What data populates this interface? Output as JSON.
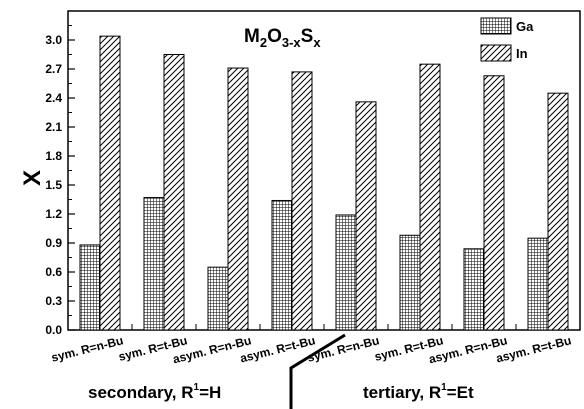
{
  "chart_data": {
    "type": "bar",
    "title": {
      "base": "M",
      "s1": "2",
      "mid": "O",
      "s2": "3-x",
      "mid2": "S",
      "s3": "x"
    },
    "ylabel": "X",
    "xlabel": "",
    "ylim": [
      0,
      3.3
    ],
    "yticks": [
      "0.0",
      "0.3",
      "0.6",
      "0.9",
      "1.2",
      "1.5",
      "1.8",
      "2.1",
      "2.4",
      "2.7",
      "3.0"
    ],
    "categories": [
      "sym. R=n-Bu",
      "sym. R=t-Bu",
      "asym. R=n-Bu",
      "asym. R=t-Bu",
      "sym. R=n-Bu",
      "sym. R=t-Bu",
      "asym. R=n-Bu",
      "asym. R=t-Bu"
    ],
    "series": [
      {
        "name": "Ga",
        "pattern": "grid",
        "values": [
          0.88,
          1.37,
          0.65,
          1.34,
          1.19,
          0.98,
          0.84,
          0.95
        ]
      },
      {
        "name": "In",
        "pattern": "hatch",
        "values": [
          3.04,
          2.85,
          2.71,
          2.67,
          2.36,
          2.75,
          2.63,
          2.45
        ]
      }
    ],
    "groups": [
      {
        "label": "secondary, R",
        "sup": "1",
        "suffix": "=H"
      },
      {
        "label": "tertiary, R",
        "sup": "1",
        "suffix": "=Et"
      }
    ],
    "legend_position": "top-right",
    "grid": false
  }
}
